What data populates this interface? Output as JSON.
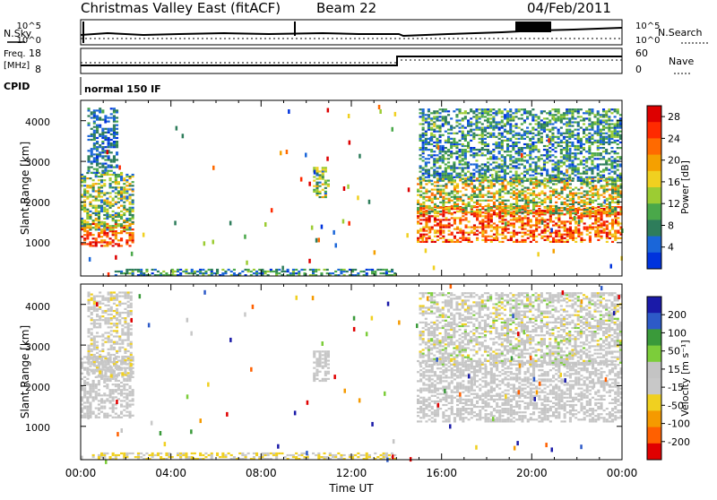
{
  "header": {
    "title": "Christmas Valley East (fitACF)",
    "beam": "Beam 22",
    "date": "04/Feb/2011"
  },
  "strips": {
    "nsky_label": "N.Sky",
    "nsearch_label": "N.Search",
    "freq_label": "Freq.",
    "freq_unit": "[MHz]",
    "nave_label": "Nave",
    "cpid_label": "CPID",
    "cpid_value": "normal 150 IF",
    "noise_ticks": [
      "10^5",
      "10^0"
    ],
    "freq_ticks": [
      "18",
      "8"
    ],
    "nave_ticks": [
      "60",
      "0"
    ]
  },
  "colors": {
    "power": [
      "#0033dd",
      "#1a66d9",
      "#2e7d5b",
      "#4aa84a",
      "#9ccc33",
      "#f0d020",
      "#f5a000",
      "#ff6a00",
      "#ff2a00",
      "#dd0000"
    ],
    "velocity": [
      "#1a1aa8",
      "#2d5ac8",
      "#3a9a3a",
      "#7ccd3a",
      "#c4c4c4",
      "#c8c8c8",
      "#f0d020",
      "#f59a00",
      "#ff6000",
      "#e00000"
    ]
  },
  "chart_data": [
    {
      "type": "heatmap",
      "name": "power",
      "ylabel": "Slant Range [km]",
      "yticks": [
        "1000",
        "2000",
        "3000",
        "4000"
      ],
      "ylim": [
        180,
        4500
      ],
      "colorbar_label": "Power [dB]",
      "colorbar_ticks": [
        "4",
        "8",
        "12",
        "16",
        "20",
        "24",
        "28"
      ],
      "colorbar_range": [
        0,
        30
      ],
      "regions": [
        {
          "t0": 0.0,
          "t1": 2.3,
          "r0": 900,
          "r1": 1500,
          "pmin": 18,
          "pmax": 30
        },
        {
          "t0": 0.0,
          "t1": 2.3,
          "r0": 1300,
          "r1": 2700,
          "pmin": 4,
          "pmax": 20
        },
        {
          "t0": 0.3,
          "t1": 1.6,
          "r0": 2700,
          "r1": 4300,
          "pmin": 2,
          "pmax": 10
        },
        {
          "t0": 10.3,
          "t1": 11.0,
          "r0": 2100,
          "r1": 2850,
          "pmin": 4,
          "pmax": 20
        },
        {
          "t0": 14.9,
          "t1": 24.0,
          "r0": 1000,
          "r1": 1900,
          "pmin": 16,
          "pmax": 30
        },
        {
          "t0": 14.9,
          "t1": 24.0,
          "r0": 1700,
          "r1": 2600,
          "pmin": 6,
          "pmax": 24
        },
        {
          "t0": 15.0,
          "t1": 24.0,
          "r0": 2500,
          "r1": 4300,
          "pmin": 2,
          "pmax": 14
        },
        {
          "t0": 1.5,
          "t1": 14.0,
          "r0": 180,
          "r1": 350,
          "pmin": 2,
          "pmax": 14
        }
      ]
    },
    {
      "type": "heatmap",
      "name": "velocity",
      "ylabel": "Slant Range [km]",
      "yticks": [
        "1000",
        "2000",
        "3000",
        "4000"
      ],
      "ylim": [
        180,
        4500
      ],
      "xlabel": "Time UT",
      "xticks": [
        "00:00",
        "04:00",
        "08:00",
        "12:00",
        "16:00",
        "20:00",
        "00:00"
      ],
      "xlim": [
        0,
        24
      ],
      "colorbar_label": "Velocity [m s⁻¹]",
      "colorbar_ticks": [
        "200",
        "100",
        "50",
        "15",
        "-15",
        "-50",
        "-100",
        "-200"
      ],
      "colorbar_range": [
        -250,
        250
      ],
      "regions": [
        {
          "t0": 0.0,
          "t1": 2.3,
          "r0": 1200,
          "r1": 2700,
          "vmin": -15,
          "vmax": 15
        },
        {
          "t0": 0.3,
          "t1": 2.3,
          "r0": 2200,
          "r1": 4300,
          "vmin": -60,
          "vmax": 15
        },
        {
          "t0": 10.3,
          "t1": 11.0,
          "r0": 2100,
          "r1": 2850,
          "vmin": -15,
          "vmax": 15
        },
        {
          "t0": 14.9,
          "t1": 24.0,
          "r0": 1100,
          "r1": 2600,
          "vmin": -15,
          "vmax": 15
        },
        {
          "t0": 15.0,
          "t1": 24.0,
          "r0": 2500,
          "r1": 4300,
          "vmin": -60,
          "vmax": 60
        },
        {
          "t0": 0.5,
          "t1": 14.0,
          "r0": 180,
          "r1": 320,
          "vmin": -80,
          "vmax": -20
        }
      ]
    }
  ]
}
